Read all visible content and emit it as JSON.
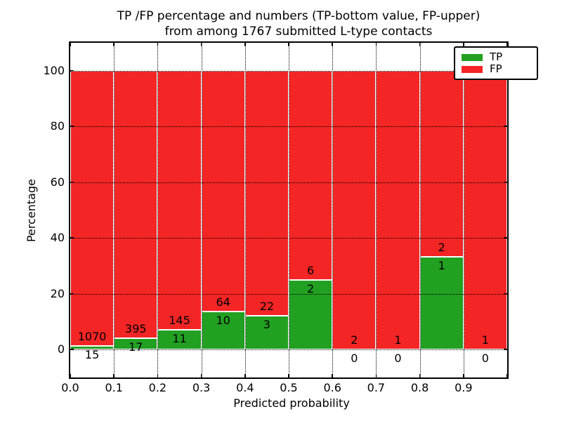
{
  "figure": {
    "title_line1": "TP /FP percentage and numbers (TP-bottom value, FP-upper)",
    "title_line2": "from among 1767 submitted L-type contacts"
  },
  "chart_data": {
    "type": "bar",
    "subtype": "stacked-percentage-histogram",
    "title": "TP /FP percentage and numbers (TP-bottom value, FP-upper)\nfrom among 1767 submitted L-type contacts",
    "xlabel": "Predicted probability",
    "ylabel": "Percentage",
    "total_contacts": 1767,
    "xlim": [
      0.0,
      1.0
    ],
    "ylim": [
      -10,
      110
    ],
    "xtick_labels": [
      "0.0",
      "0.1",
      "0.2",
      "0.3",
      "0.4",
      "0.5",
      "0.6",
      "0.7",
      "0.8",
      "0.9"
    ],
    "ytick_values": [
      0,
      20,
      40,
      60,
      80,
      100
    ],
    "grid": {
      "style": "dotted",
      "color": "#000000",
      "drawn_above_bars": true
    },
    "legend": {
      "position": "upper-right",
      "entries": [
        {
          "label": "TP",
          "color": "#22a022"
        },
        {
          "label": "FP",
          "color": "#f42525"
        }
      ]
    },
    "annotation_rule": "FP count printed above TP segment top, TP count printed below TP segment top",
    "bins": [
      {
        "x_range": [
          0.0,
          0.1
        ],
        "tp_count": 15,
        "fp_count": 1070,
        "tp_percent": 1.38
      },
      {
        "x_range": [
          0.1,
          0.2
        ],
        "tp_count": 17,
        "fp_count": 395,
        "tp_percent": 4.13
      },
      {
        "x_range": [
          0.2,
          0.3
        ],
        "tp_count": 11,
        "fp_count": 145,
        "tp_percent": 7.05
      },
      {
        "x_range": [
          0.3,
          0.4
        ],
        "tp_count": 10,
        "fp_count": 64,
        "tp_percent": 13.51
      },
      {
        "x_range": [
          0.4,
          0.5
        ],
        "tp_count": 3,
        "fp_count": 22,
        "tp_percent": 12.0
      },
      {
        "x_range": [
          0.5,
          0.6
        ],
        "tp_count": 2,
        "fp_count": 6,
        "tp_percent": 25.0
      },
      {
        "x_range": [
          0.6,
          0.7
        ],
        "tp_count": 0,
        "fp_count": 2,
        "tp_percent": 0.0
      },
      {
        "x_range": [
          0.7,
          0.8
        ],
        "tp_count": 0,
        "fp_count": 1,
        "tp_percent": 0.0
      },
      {
        "x_range": [
          0.8,
          0.9
        ],
        "tp_count": 1,
        "fp_count": 2,
        "tp_percent": 33.33
      },
      {
        "x_range": [
          0.9,
          1.0
        ],
        "tp_count": 0,
        "fp_count": 1,
        "tp_percent": 0.0
      }
    ]
  },
  "colors": {
    "tp_green": "#22a022",
    "fp_red": "#f42525",
    "bar_edge": "#ffffff",
    "axis": "#000000",
    "background": "#ffffff"
  }
}
